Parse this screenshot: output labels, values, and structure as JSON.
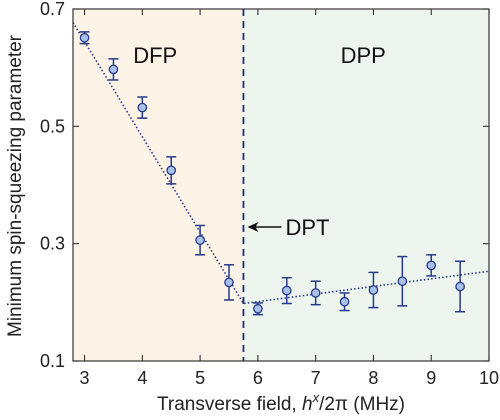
{
  "chart_data": {
    "type": "scatter",
    "xlabel_prefix": "Transverse field, ",
    "xlabel_math": "h",
    "xlabel_sup": "x",
    "xlabel_rest": "/2π",
    "xlabel_unit": " (MHz)",
    "ylabel": "Minimum spin-squeezing parameter",
    "xlim": [
      2.8,
      10
    ],
    "ylim": [
      0.1,
      0.7
    ],
    "x_ticks": [
      "3",
      "4",
      "5",
      "6",
      "7",
      "8",
      "9",
      "10"
    ],
    "y_ticks": [
      "0.1",
      "0.3",
      "0.5",
      "0.7"
    ],
    "grid": false,
    "points": [
      {
        "x": 3.0,
        "y": 0.651,
        "err": 0.01
      },
      {
        "x": 3.5,
        "y": 0.597,
        "err": 0.018
      },
      {
        "x": 4.0,
        "y": 0.532,
        "err": 0.018
      },
      {
        "x": 4.5,
        "y": 0.425,
        "err": 0.023
      },
      {
        "x": 5.0,
        "y": 0.306,
        "err": 0.025
      },
      {
        "x": 5.5,
        "y": 0.234,
        "err": 0.03
      },
      {
        "x": 6.0,
        "y": 0.189,
        "err": 0.01
      },
      {
        "x": 6.5,
        "y": 0.22,
        "err": 0.022
      },
      {
        "x": 7.0,
        "y": 0.216,
        "err": 0.02
      },
      {
        "x": 7.5,
        "y": 0.201,
        "err": 0.015
      },
      {
        "x": 8.0,
        "y": 0.221,
        "err": 0.03
      },
      {
        "x": 8.5,
        "y": 0.236,
        "err": 0.042
      },
      {
        "x": 9.0,
        "y": 0.263,
        "err": 0.018
      },
      {
        "x": 9.5,
        "y": 0.227,
        "err": 0.043
      }
    ],
    "fit_line": [
      {
        "x": 2.8,
        "y": 0.677
      },
      {
        "x": 5.75,
        "y": 0.198
      },
      {
        "x": 10.0,
        "y": 0.253
      }
    ],
    "transition_x": 5.75,
    "regions": [
      {
        "label": "DFP",
        "x_from": 2.8,
        "x_to": 5.75,
        "color": "#fdf3e6"
      },
      {
        "label": "DPP",
        "x_from": 5.75,
        "x_to": 10.0,
        "color": "#eef5ee"
      }
    ],
    "annotation": {
      "label": "DPT",
      "arrow": "left"
    },
    "colors": {
      "marker_fill": "#a9c0e8",
      "marker_edge": "#243a8a",
      "error_bar": "#243a8a",
      "fit_line": "#243a8a",
      "transition_line": "#1e2f70"
    }
  }
}
